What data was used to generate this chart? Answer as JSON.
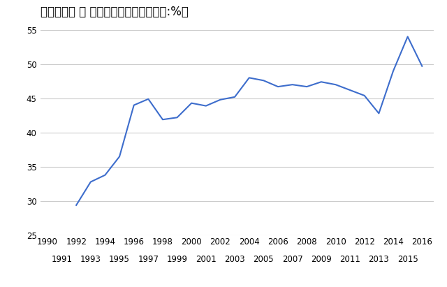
{
  "title": "ウクライナ ー 原子力発電比率　［単位:%］",
  "years": [
    1992,
    1993,
    1994,
    1995,
    1996,
    1997,
    1998,
    1999,
    2000,
    2001,
    2002,
    2003,
    2004,
    2005,
    2006,
    2007,
    2008,
    2009,
    2010,
    2011,
    2012,
    2013,
    2014,
    2015,
    2016
  ],
  "values": [
    29.4,
    32.8,
    33.8,
    36.5,
    44.0,
    44.9,
    41.9,
    42.2,
    44.3,
    43.9,
    44.8,
    45.2,
    48.0,
    47.6,
    46.7,
    47.0,
    46.7,
    47.4,
    47.0,
    46.2,
    45.4,
    42.8,
    49.0,
    54.0,
    49.7
  ],
  "line_color": "#3d6dcc",
  "line_width": 1.5,
  "ylim": [
    25,
    56
  ],
  "yticks": [
    25,
    30,
    35,
    40,
    45,
    50,
    55
  ],
  "xtick_even": [
    1990,
    1992,
    1994,
    1996,
    1998,
    2000,
    2002,
    2004,
    2006,
    2008,
    2010,
    2012,
    2014,
    2016
  ],
  "xtick_odd": [
    1991,
    1993,
    1995,
    1997,
    1999,
    2001,
    2003,
    2005,
    2007,
    2009,
    2011,
    2013,
    2015
  ],
  "xlim": [
    1989.5,
    2016.8
  ],
  "background_color": "#ffffff",
  "grid_color": "#cccccc",
  "title_fontsize": 12,
  "tick_fontsize": 8.5
}
